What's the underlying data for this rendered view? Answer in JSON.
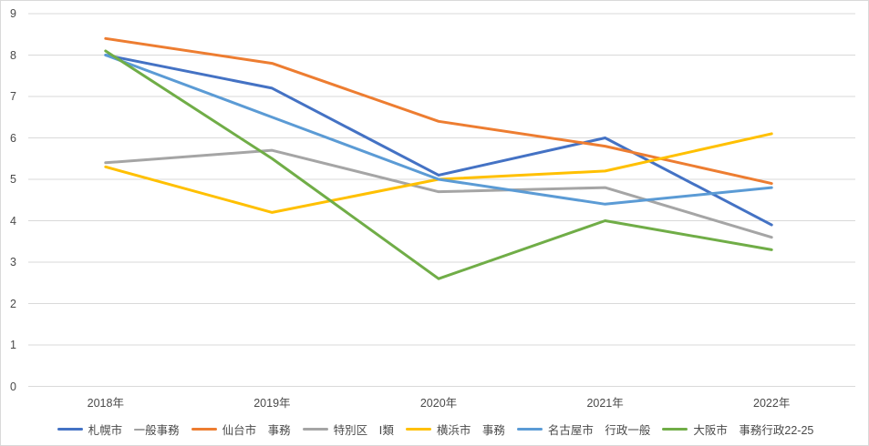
{
  "chart_data": {
    "type": "line",
    "title": "",
    "xlabel": "",
    "ylabel": "",
    "categories": [
      "2018年",
      "2019年",
      "2020年",
      "2021年",
      "2022年"
    ],
    "series": [
      {
        "name": "札幌市　一般事務",
        "color": "#4472C4",
        "values": [
          8.0,
          7.2,
          5.1,
          6.0,
          3.9
        ]
      },
      {
        "name": "仙台市　事務",
        "color": "#ED7D31",
        "values": [
          8.4,
          7.8,
          6.4,
          5.8,
          4.9
        ]
      },
      {
        "name": "特別区　Ⅰ類",
        "color": "#A5A5A5",
        "values": [
          5.4,
          5.7,
          4.7,
          4.8,
          3.6
        ]
      },
      {
        "name": "横浜市　事務",
        "color": "#FFC000",
        "values": [
          5.3,
          4.2,
          5.0,
          5.2,
          6.1
        ]
      },
      {
        "name": "名古屋市　行政一般",
        "color": "#5B9BD5",
        "values": [
          8.0,
          6.5,
          5.0,
          4.4,
          4.8
        ]
      },
      {
        "name": "大阪市　事務行政22-25",
        "color": "#70AD47",
        "values": [
          8.1,
          5.5,
          2.6,
          4.0,
          3.3
        ]
      }
    ],
    "ylim": [
      0,
      9
    ],
    "ytick_step": 1,
    "ytick_labels": [
      "0",
      "1",
      "2",
      "3",
      "4",
      "5",
      "6",
      "7",
      "8",
      "9"
    ],
    "grid": "horizontal",
    "gridline_color": "#d9d9d9",
    "axis_text_color": "#4a4a4a",
    "legend_position": "bottom",
    "line_width": 3
  }
}
